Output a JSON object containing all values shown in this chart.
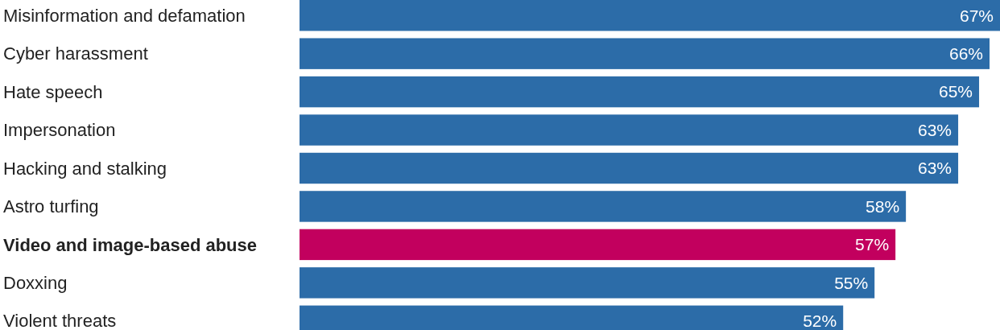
{
  "chart_data": {
    "type": "bar",
    "orientation": "horizontal",
    "categories": [
      "Misinformation and defamation",
      "Cyber harassment",
      "Hate speech",
      "Impersonation",
      "Hacking and stalking",
      "Astro turfing",
      "Video and image-based abuse",
      "Doxxing",
      "Violent threats"
    ],
    "values": [
      67,
      66,
      65,
      63,
      63,
      58,
      57,
      55,
      52
    ],
    "colors": [
      "#2c6ca8",
      "#2c6ca8",
      "#2c6ca8",
      "#2c6ca8",
      "#2c6ca8",
      "#2c6ca8",
      "#c2005e",
      "#2c6ca8",
      "#2c6ca8"
    ],
    "value_labels": [
      "67%",
      "66%",
      "65%",
      "63%",
      "63%",
      "58%",
      "57%",
      "55%",
      "52%"
    ]
  }
}
